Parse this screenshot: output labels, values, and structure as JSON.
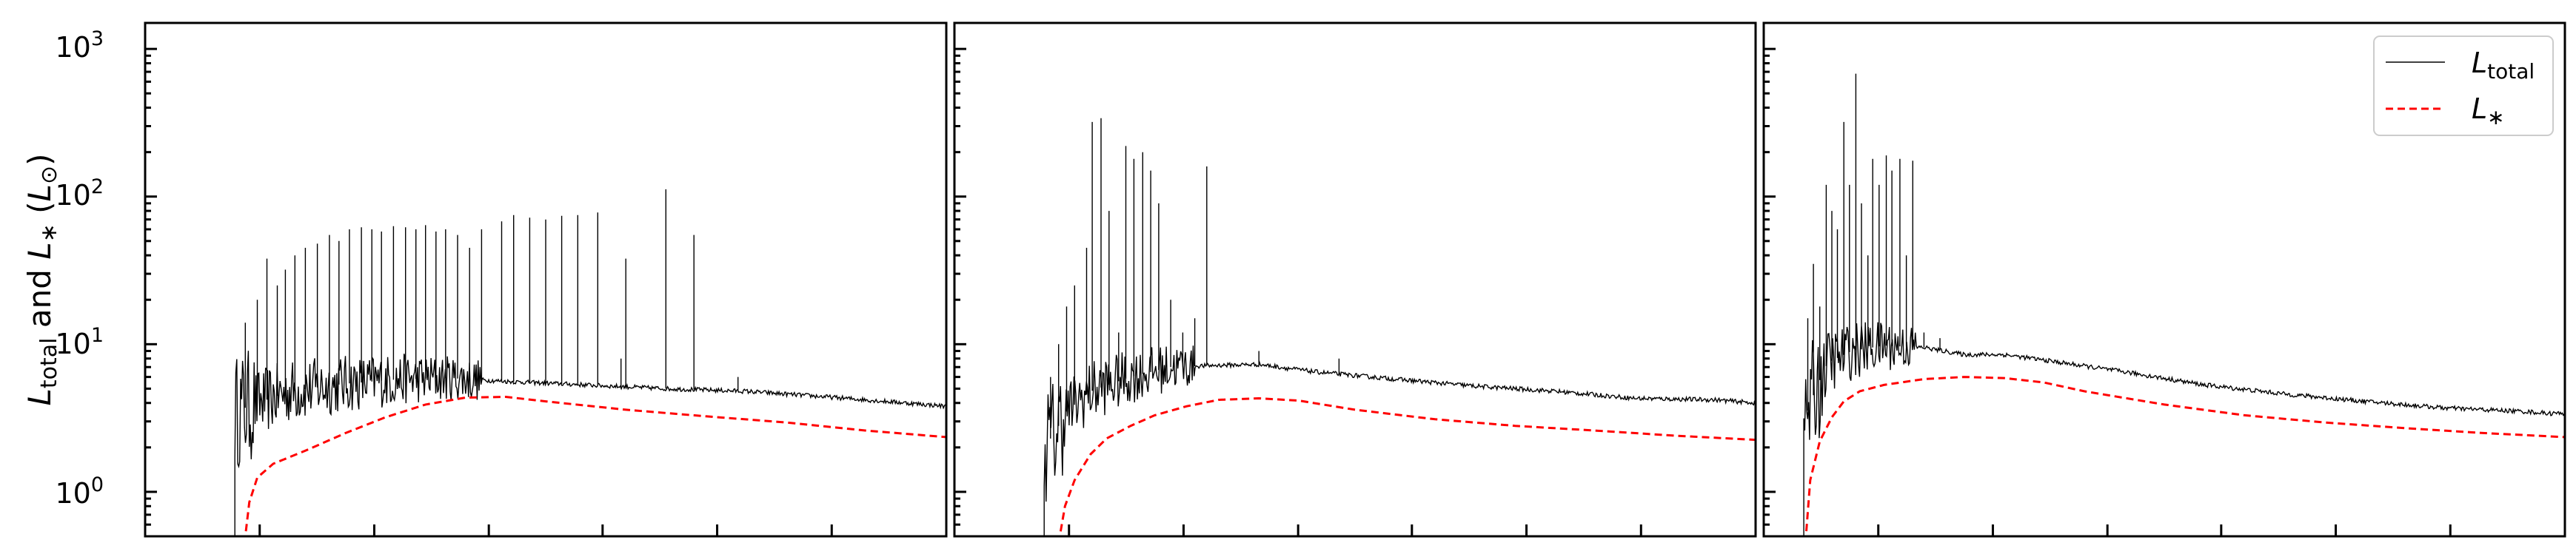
{
  "chart_data": {
    "type": "line",
    "ylabel": "L_total and L_* (L_⊙)",
    "ylabel_parts": {
      "a": "L",
      "a_sub": "total",
      "and": " and ",
      "b": "L",
      "b_sub": "∗",
      "unit_open": " (",
      "unit_L": "L",
      "unit_sub": "⊙",
      "unit_close": ")"
    },
    "yscale": "log",
    "ylim": [
      0.5,
      1500
    ],
    "xlim": [
      0,
      100
    ],
    "yticks": [
      {
        "value": 1,
        "base": "10",
        "exp": "0"
      },
      {
        "value": 10,
        "base": "10",
        "exp": "1"
      },
      {
        "value": 100,
        "base": "10",
        "exp": "2"
      },
      {
        "value": 1000,
        "base": "10",
        "exp": "3"
      }
    ],
    "xticks": [
      14.3,
      28.6,
      42.9,
      57.1,
      71.4,
      85.7
    ],
    "xtick_labels_visible": false,
    "grid": false,
    "legend": {
      "placement": "top-right",
      "entries": [
        {
          "label": "L",
          "sub": "total",
          "color": "#000000",
          "style": "solid"
        },
        {
          "label": "L",
          "sub": "∗",
          "color": "#ff0000",
          "style": "dashed"
        }
      ]
    },
    "colors": {
      "total": "#000000",
      "star": "#ff0000"
    },
    "panels": [
      {
        "id": "left",
        "total": {
          "onset_x": 11.2,
          "baseline": [
            [
              11.2,
              3.5
            ],
            [
              13,
              3.8
            ],
            [
              18,
              4.8
            ],
            [
              25,
              5.4
            ],
            [
              32,
              5.8
            ],
            [
              38,
              5.9
            ],
            [
              45,
              5.6
            ],
            [
              55,
              5.3
            ],
            [
              65,
              5.0
            ],
            [
              75,
              4.8
            ],
            [
              85,
              4.4
            ],
            [
              95,
              4.0
            ],
            [
              100,
              3.8
            ]
          ],
          "noisy_until_x": 42,
          "spikes": [
            [
              12.5,
              14
            ],
            [
              14,
              20
            ],
            [
              15.2,
              38
            ],
            [
              16.5,
              25
            ],
            [
              17.5,
              32
            ],
            [
              18.7,
              40
            ],
            [
              20,
              45
            ],
            [
              21.5,
              48
            ],
            [
              23,
              55
            ],
            [
              24.2,
              50
            ],
            [
              25.5,
              60
            ],
            [
              27,
              62
            ],
            [
              28.3,
              60
            ],
            [
              29.5,
              58
            ],
            [
              31,
              63
            ],
            [
              32.5,
              62
            ],
            [
              33.8,
              60
            ],
            [
              35,
              64
            ],
            [
              36.3,
              58
            ],
            [
              37.5,
              60
            ],
            [
              39,
              55
            ],
            [
              40.5,
              45
            ],
            [
              42,
              60
            ],
            [
              44.5,
              68
            ],
            [
              46,
              75
            ],
            [
              48,
              72
            ],
            [
              50,
              70
            ],
            [
              52,
              74
            ],
            [
              54,
              75
            ],
            [
              56.5,
              78
            ],
            [
              60,
              38
            ],
            [
              65,
              112
            ],
            [
              68.5,
              55
            ],
            [
              59.4,
              8
            ],
            [
              74,
              6
            ]
          ]
        },
        "star": {
          "points": [
            [
              12.4,
              0.45
            ],
            [
              13,
              0.85
            ],
            [
              14,
              1.25
            ],
            [
              16,
              1.55
            ],
            [
              20,
              1.9
            ],
            [
              25,
              2.5
            ],
            [
              30,
              3.2
            ],
            [
              35,
              3.9
            ],
            [
              40,
              4.35
            ],
            [
              45,
              4.4
            ],
            [
              50,
              4.1
            ],
            [
              60,
              3.6
            ],
            [
              70,
              3.25
            ],
            [
              80,
              2.95
            ],
            [
              90,
              2.6
            ],
            [
              100,
              2.35
            ]
          ]
        }
      },
      {
        "id": "middle",
        "total": {
          "onset_x": 11.2,
          "baseline": [
            [
              11.2,
              2.0
            ],
            [
              12.5,
              2.5
            ],
            [
              14,
              3.5
            ],
            [
              17,
              4.8
            ],
            [
              22,
              6.0
            ],
            [
              27,
              7.0
            ],
            [
              33,
              7.2
            ],
            [
              38,
              7.3
            ],
            [
              45,
              6.5
            ],
            [
              55,
              5.8
            ],
            [
              65,
              5.2
            ],
            [
              75,
              4.8
            ],
            [
              85,
              4.3
            ],
            [
              95,
              4.2
            ],
            [
              100,
              4.0
            ]
          ],
          "noisy_until_x": 30,
          "spikes": [
            [
              12,
              6
            ],
            [
              13,
              10
            ],
            [
              14,
              18
            ],
            [
              15,
              25
            ],
            [
              16.5,
              45
            ],
            [
              17.2,
              320
            ],
            [
              18.3,
              340
            ],
            [
              19.3,
              80
            ],
            [
              20.5,
              12
            ],
            [
              21.4,
              220
            ],
            [
              22.4,
              180
            ],
            [
              23.5,
              200
            ],
            [
              24.5,
              150
            ],
            [
              25.5,
              90
            ],
            [
              27,
              20
            ],
            [
              31.5,
              160
            ],
            [
              28.5,
              12
            ],
            [
              30,
              15
            ],
            [
              38,
              9
            ],
            [
              48,
              8
            ]
          ]
        },
        "star": {
          "points": [
            [
              13,
              0.45
            ],
            [
              13.8,
              0.8
            ],
            [
              15,
              1.2
            ],
            [
              17,
              1.8
            ],
            [
              19,
              2.3
            ],
            [
              22,
              2.8
            ],
            [
              25,
              3.3
            ],
            [
              29,
              3.8
            ],
            [
              33,
              4.2
            ],
            [
              38,
              4.3
            ],
            [
              43,
              4.15
            ],
            [
              50,
              3.6
            ],
            [
              60,
              3.1
            ],
            [
              70,
              2.8
            ],
            [
              80,
              2.6
            ],
            [
              90,
              2.4
            ],
            [
              100,
              2.25
            ]
          ]
        }
      },
      {
        "id": "right",
        "total": {
          "onset_x": 5.0,
          "baseline": [
            [
              5,
              3.0
            ],
            [
              6.5,
              5.0
            ],
            [
              8,
              7.5
            ],
            [
              11,
              9.0
            ],
            [
              15,
              9.8
            ],
            [
              20,
              9.5
            ],
            [
              25,
              8.5
            ],
            [
              30,
              8.5
            ],
            [
              35,
              7.8
            ],
            [
              45,
              6.5
            ],
            [
              55,
              5.3
            ],
            [
              65,
              4.6
            ],
            [
              75,
              4.1
            ],
            [
              85,
              3.7
            ],
            [
              95,
              3.5
            ],
            [
              98,
              3.4
            ]
          ],
          "noisy_until_x": 19,
          "spikes": [
            [
              5.5,
              15
            ],
            [
              6.2,
              35
            ],
            [
              7,
              18
            ],
            [
              7.8,
              120
            ],
            [
              8.5,
              80
            ],
            [
              9.2,
              60
            ],
            [
              10,
              320
            ],
            [
              10.7,
              120
            ],
            [
              11.5,
              680
            ],
            [
              12.2,
              90
            ],
            [
              13,
              40
            ],
            [
              13.6,
              180
            ],
            [
              14.4,
              120
            ],
            [
              15.3,
              190
            ],
            [
              16,
              150
            ],
            [
              17,
              180
            ],
            [
              17.8,
              40
            ],
            [
              18.6,
              175
            ],
            [
              20,
              12
            ],
            [
              22,
              11
            ]
          ]
        },
        "star": {
          "points": [
            [
              5.2,
              0.45
            ],
            [
              5.8,
              1.2
            ],
            [
              7,
              2.2
            ],
            [
              8.5,
              3.2
            ],
            [
              10,
              4.1
            ],
            [
              12,
              4.8
            ],
            [
              15,
              5.3
            ],
            [
              20,
              5.8
            ],
            [
              25,
              6.0
            ],
            [
              30,
              5.9
            ],
            [
              35,
              5.5
            ],
            [
              40,
              4.8
            ],
            [
              50,
              3.9
            ],
            [
              60,
              3.3
            ],
            [
              70,
              2.95
            ],
            [
              80,
              2.7
            ],
            [
              90,
              2.5
            ],
            [
              100,
              2.35
            ]
          ]
        }
      }
    ]
  }
}
